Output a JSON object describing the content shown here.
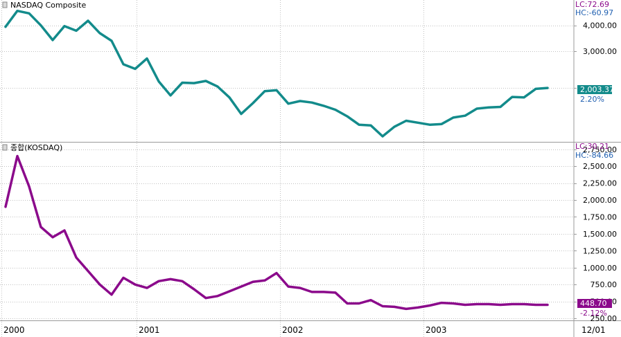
{
  "colors": {
    "nasdaq_line": "#138b8b",
    "kosdaq_line": "#8b0a8b",
    "grid": "#c0c0c0",
    "frame": "#9a9a9a",
    "axis_text": "#000000",
    "lc_text": "#8b0a8b",
    "hc_text": "#1f5fb0"
  },
  "x_axis": {
    "tick_labels": [
      "2000",
      "2001",
      "2002",
      "2003",
      "12/01"
    ]
  },
  "chart_data": [
    {
      "type": "line",
      "title": "NASDAQ Composite",
      "lc_text": "LC:72.69",
      "hc_text": "HC:-60.97",
      "y_scale": "log",
      "ylim": [
        1100,
        5300
      ],
      "ytick_labels": [
        "4,000.00",
        "3,000.00"
      ],
      "ytick_values": [
        4000,
        3000
      ],
      "grid_extra_values": [
        2000
      ],
      "x": [
        "2000-01",
        "2000-02",
        "2000-03",
        "2000-04",
        "2000-05",
        "2000-06",
        "2000-07",
        "2000-08",
        "2000-09",
        "2000-10",
        "2000-11",
        "2000-12",
        "2001-01",
        "2001-02",
        "2001-03",
        "2001-04",
        "2001-05",
        "2001-06",
        "2001-07",
        "2001-08",
        "2001-09",
        "2001-10",
        "2001-11",
        "2001-12",
        "2002-01",
        "2002-02",
        "2002-03",
        "2002-04",
        "2002-05",
        "2002-06",
        "2002-07",
        "2002-08",
        "2002-09",
        "2002-10",
        "2002-11",
        "2002-12",
        "2003-01",
        "2003-02",
        "2003-03",
        "2003-04",
        "2003-05",
        "2003-06",
        "2003-07",
        "2003-08",
        "2003-09",
        "2003-10",
        "2003-11"
      ],
      "series": [
        {
          "values": [
            3940,
            4700,
            4570,
            4000,
            3400,
            3970,
            3770,
            4210,
            3670,
            3370,
            2600,
            2470,
            2770,
            2150,
            1840,
            2120,
            2110,
            2160,
            2030,
            1800,
            1500,
            1690,
            1930,
            1950,
            1680,
            1730,
            1700,
            1640,
            1570,
            1460,
            1330,
            1320,
            1170,
            1300,
            1390,
            1360,
            1330,
            1340,
            1440,
            1470,
            1590,
            1610,
            1620,
            1810,
            1800,
            1980,
            2000
          ]
        }
      ],
      "last_value_label": "2,003.37",
      "last_change_label": "2.20%"
    },
    {
      "type": "line",
      "title": "종합(KOSDAQ)",
      "lc_text": "LC:30.21",
      "hc_text": "HC:-84.66",
      "y_scale": "linear",
      "ylim": [
        230,
        2850
      ],
      "ytick_labels": [
        "2,750.00",
        "2,500.00",
        "2,250.00",
        "2,000.00",
        "1,750.00",
        "1,500.00",
        "1,250.00",
        "1,000.00",
        "750.00",
        "500.00",
        "250.00"
      ],
      "ytick_values": [
        2750,
        2500,
        2250,
        2000,
        1750,
        1500,
        1250,
        1000,
        750,
        500,
        250
      ],
      "x": [
        "2000-01",
        "2000-02",
        "2000-03",
        "2000-04",
        "2000-05",
        "2000-06",
        "2000-07",
        "2000-08",
        "2000-09",
        "2000-10",
        "2000-11",
        "2000-12",
        "2001-01",
        "2001-02",
        "2001-03",
        "2001-04",
        "2001-05",
        "2001-06",
        "2001-07",
        "2001-08",
        "2001-09",
        "2001-10",
        "2001-11",
        "2001-12",
        "2002-01",
        "2002-02",
        "2002-03",
        "2002-04",
        "2002-05",
        "2002-06",
        "2002-07",
        "2002-08",
        "2002-09",
        "2002-10",
        "2002-11",
        "2002-12",
        "2003-01",
        "2003-02",
        "2003-03",
        "2003-04",
        "2003-05",
        "2003-06",
        "2003-07",
        "2003-08",
        "2003-09",
        "2003-10",
        "2003-11"
      ],
      "series": [
        {
          "values": [
            1900,
            2650,
            2200,
            1600,
            1450,
            1550,
            1150,
            950,
            750,
            600,
            850,
            750,
            700,
            800,
            830,
            800,
            680,
            550,
            580,
            650,
            720,
            790,
            810,
            920,
            720,
            700,
            640,
            640,
            630,
            470,
            470,
            520,
            430,
            420,
            390,
            410,
            440,
            480,
            470,
            450,
            460,
            460,
            450,
            460,
            460,
            450,
            450
          ]
        }
      ],
      "last_value_label": "448.70",
      "last_change_label": "-2.12%"
    }
  ]
}
